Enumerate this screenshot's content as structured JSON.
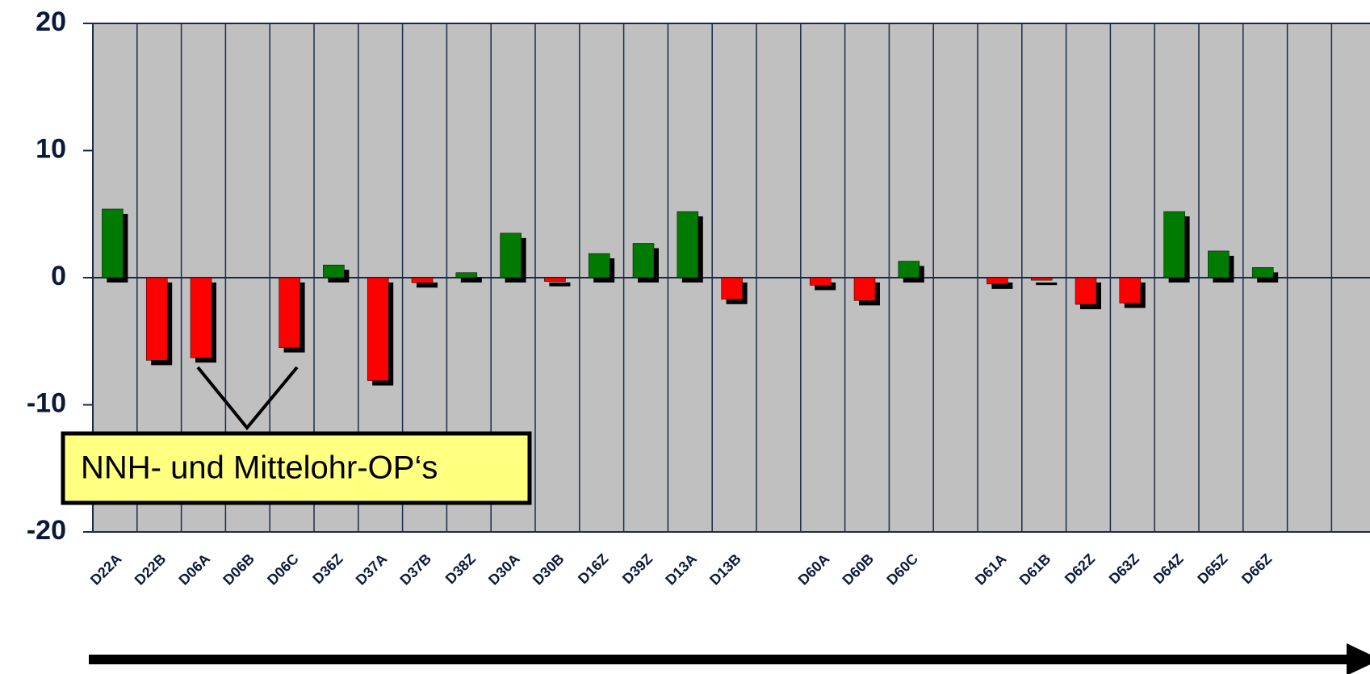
{
  "chart_data": {
    "type": "bar",
    "categories": [
      "D22A",
      "D22B",
      "D06A",
      "D06B",
      "D06C",
      "D36Z",
      "D37A",
      "D37B",
      "D38Z",
      "D30A",
      "D30B",
      "D16Z",
      "D39Z",
      "D13A",
      "D13B",
      null,
      "D60A",
      "D60B",
      "D60C",
      null,
      "D61A",
      "D61B",
      "D62Z",
      "D63Z",
      "D64Z",
      "D65Z",
      "D66Z",
      null,
      null
    ],
    "values": [
      5.4,
      -6.5,
      -6.3,
      null,
      -5.5,
      1.0,
      -8.1,
      -0.4,
      0.4,
      3.5,
      -0.3,
      1.9,
      2.7,
      5.2,
      -1.7,
      null,
      -0.6,
      -1.8,
      1.3,
      null,
      -0.5,
      -0.2,
      -2.1,
      -2.0,
      5.2,
      2.1,
      0.8,
      null,
      null
    ],
    "positive_color": "#007a00",
    "negative_color": "#ff0000",
    "ylim": [
      -20,
      20
    ],
    "yticks": [
      -20,
      -10,
      0,
      10,
      20
    ],
    "annotation": "NNH- und Mittelohr-OP‘s"
  }
}
